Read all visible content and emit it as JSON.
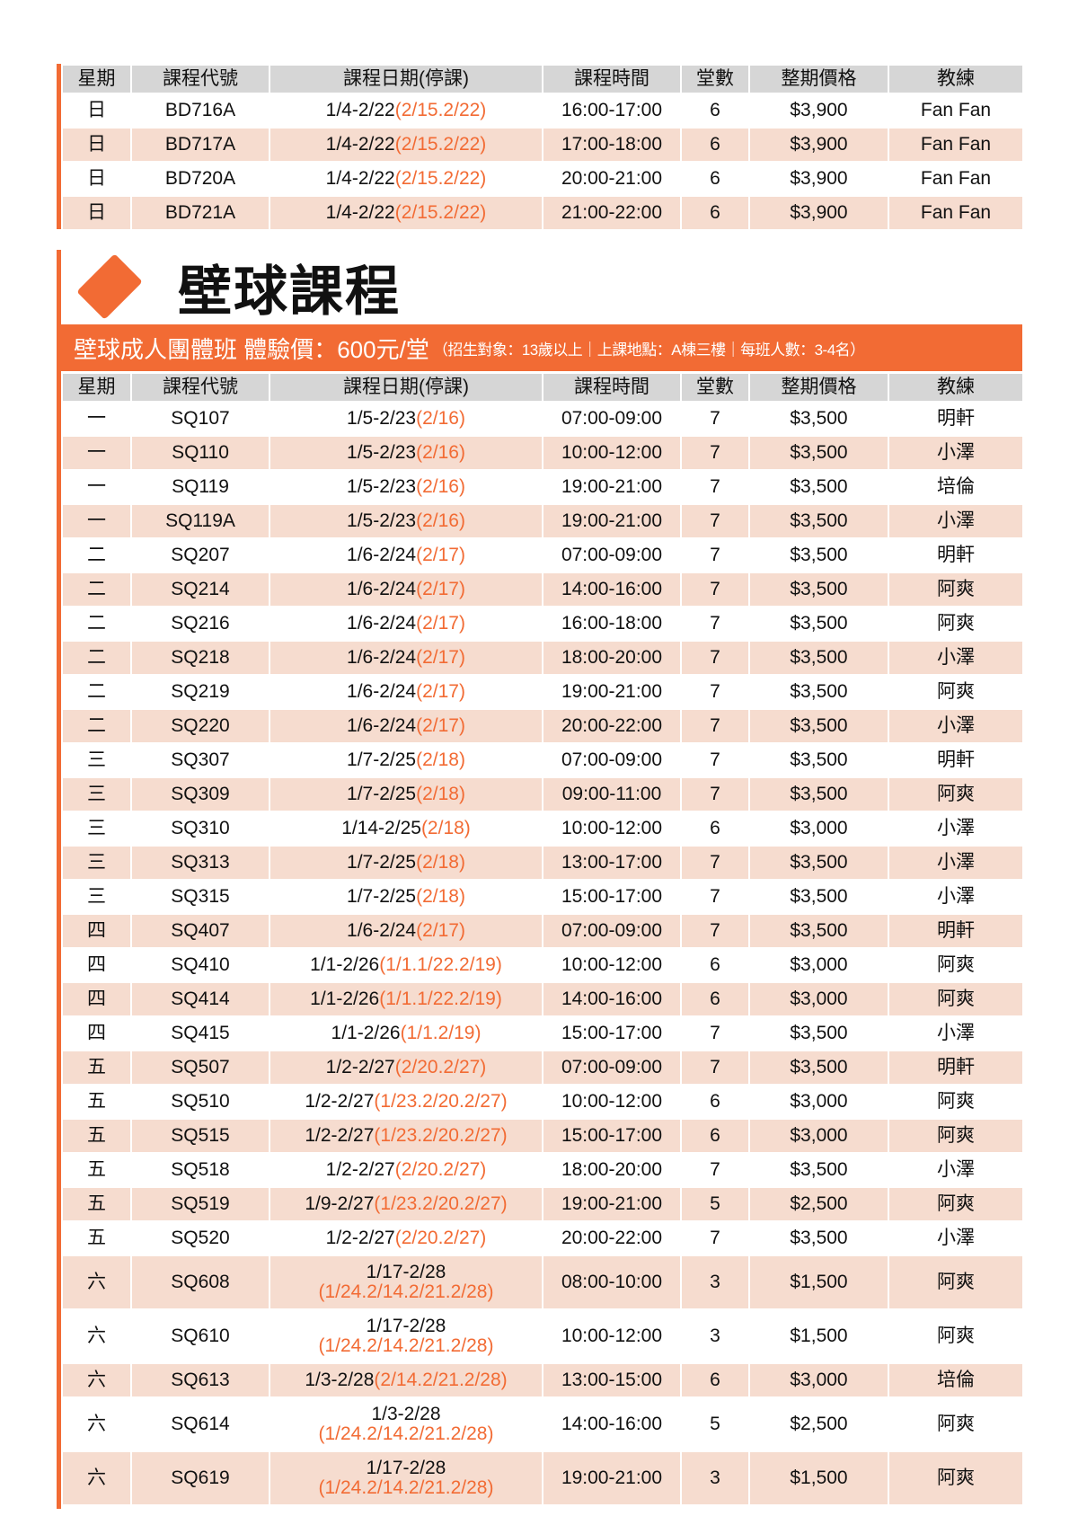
{
  "colors": {
    "accent": "#f26b34",
    "header_bg": "#d6d6d6",
    "alt_row": "#f6dccf"
  },
  "columns": [
    "星期",
    "課程代號",
    "課程日期(停課)",
    "課程時間",
    "堂數",
    "整期價格",
    "教練"
  ],
  "table1": [
    {
      "day": "日",
      "code": "BD716A",
      "date": "1/4-2/22",
      "stop": "(2/15.2/22)",
      "time": "16:00-17:00",
      "count": "6",
      "price": "$3,900",
      "coach": "Fan Fan"
    },
    {
      "day": "日",
      "code": "BD717A",
      "date": "1/4-2/22",
      "stop": "(2/15.2/22)",
      "time": "17:00-18:00",
      "count": "6",
      "price": "$3,900",
      "coach": "Fan Fan"
    },
    {
      "day": "日",
      "code": "BD720A",
      "date": "1/4-2/22",
      "stop": "(2/15.2/22)",
      "time": "20:00-21:00",
      "count": "6",
      "price": "$3,900",
      "coach": "Fan Fan"
    },
    {
      "day": "日",
      "code": "BD721A",
      "date": "1/4-2/22",
      "stop": "(2/15.2/22)",
      "time": "21:00-22:00",
      "count": "6",
      "price": "$3,900",
      "coach": "Fan Fan"
    }
  ],
  "section": {
    "title": "壁球課程",
    "banner_main": "壁球成人團體班 體驗價：600元/堂",
    "banner_note": "（招生對象：13歲以上｜上課地點：A棟三樓｜每班人數：3-4名）"
  },
  "table2": [
    {
      "day": "一",
      "code": "SQ107",
      "date": "1/5-2/23",
      "stop": "(2/16)",
      "time": "07:00-09:00",
      "count": "7",
      "price": "$3,500",
      "coach": "明軒"
    },
    {
      "day": "一",
      "code": "SQ110",
      "date": "1/5-2/23",
      "stop": "(2/16)",
      "time": "10:00-12:00",
      "count": "7",
      "price": "$3,500",
      "coach": "小澤"
    },
    {
      "day": "一",
      "code": "SQ119",
      "date": "1/5-2/23",
      "stop": "(2/16)",
      "time": "19:00-21:00",
      "count": "7",
      "price": "$3,500",
      "coach": "培倫"
    },
    {
      "day": "一",
      "code": "SQ119A",
      "date": "1/5-2/23",
      "stop": "(2/16)",
      "time": "19:00-21:00",
      "count": "7",
      "price": "$3,500",
      "coach": "小澤"
    },
    {
      "day": "二",
      "code": "SQ207",
      "date": "1/6-2/24",
      "stop": "(2/17)",
      "time": "07:00-09:00",
      "count": "7",
      "price": "$3,500",
      "coach": "明軒"
    },
    {
      "day": "二",
      "code": "SQ214",
      "date": "1/6-2/24",
      "stop": "(2/17)",
      "time": "14:00-16:00",
      "count": "7",
      "price": "$3,500",
      "coach": "阿爽"
    },
    {
      "day": "二",
      "code": "SQ216",
      "date": "1/6-2/24",
      "stop": "(2/17)",
      "time": "16:00-18:00",
      "count": "7",
      "price": "$3,500",
      "coach": "阿爽"
    },
    {
      "day": "二",
      "code": "SQ218",
      "date": "1/6-2/24",
      "stop": "(2/17)",
      "time": "18:00-20:00",
      "count": "7",
      "price": "$3,500",
      "coach": "小澤"
    },
    {
      "day": "二",
      "code": "SQ219",
      "date": "1/6-2/24",
      "stop": "(2/17)",
      "time": "19:00-21:00",
      "count": "7",
      "price": "$3,500",
      "coach": "阿爽"
    },
    {
      "day": "二",
      "code": "SQ220",
      "date": "1/6-2/24",
      "stop": "(2/17)",
      "time": "20:00-22:00",
      "count": "7",
      "price": "$3,500",
      "coach": "小澤"
    },
    {
      "day": "三",
      "code": "SQ307",
      "date": "1/7-2/25",
      "stop": "(2/18)",
      "time": "07:00-09:00",
      "count": "7",
      "price": "$3,500",
      "coach": "明軒"
    },
    {
      "day": "三",
      "code": "SQ309",
      "date": "1/7-2/25",
      "stop": "(2/18)",
      "time": "09:00-11:00",
      "count": "7",
      "price": "$3,500",
      "coach": "阿爽"
    },
    {
      "day": "三",
      "code": "SQ310",
      "date": "1/14-2/25",
      "stop": "(2/18)",
      "time": "10:00-12:00",
      "count": "6",
      "price": "$3,000",
      "coach": "小澤"
    },
    {
      "day": "三",
      "code": "SQ313",
      "date": "1/7-2/25",
      "stop": "(2/18)",
      "time": "13:00-17:00",
      "count": "7",
      "price": "$3,500",
      "coach": "小澤"
    },
    {
      "day": "三",
      "code": "SQ315",
      "date": "1/7-2/25",
      "stop": "(2/18)",
      "time": "15:00-17:00",
      "count": "7",
      "price": "$3,500",
      "coach": "小澤"
    },
    {
      "day": "四",
      "code": "SQ407",
      "date": "1/6-2/24",
      "stop": "(2/17)",
      "time": "07:00-09:00",
      "count": "7",
      "price": "$3,500",
      "coach": "明軒"
    },
    {
      "day": "四",
      "code": "SQ410",
      "date": "1/1-2/26",
      "stop": "(1/1.1/22.2/19)",
      "time": "10:00-12:00",
      "count": "6",
      "price": "$3,000",
      "coach": "阿爽"
    },
    {
      "day": "四",
      "code": "SQ414",
      "date": "1/1-2/26",
      "stop": "(1/1.1/22.2/19)",
      "time": "14:00-16:00",
      "count": "6",
      "price": "$3,000",
      "coach": "阿爽"
    },
    {
      "day": "四",
      "code": "SQ415",
      "date": "1/1-2/26",
      "stop": "(1/1.2/19)",
      "time": "15:00-17:00",
      "count": "7",
      "price": "$3,500",
      "coach": "小澤"
    },
    {
      "day": "五",
      "code": "SQ507",
      "date": "1/2-2/27",
      "stop": "(2/20.2/27)",
      "time": "07:00-09:00",
      "count": "7",
      "price": "$3,500",
      "coach": "明軒"
    },
    {
      "day": "五",
      "code": "SQ510",
      "date": "1/2-2/27",
      "stop": "(1/23.2/20.2/27)",
      "time": "10:00-12:00",
      "count": "6",
      "price": "$3,000",
      "coach": "阿爽"
    },
    {
      "day": "五",
      "code": "SQ515",
      "date": "1/2-2/27",
      "stop": "(1/23.2/20.2/27)",
      "time": "15:00-17:00",
      "count": "6",
      "price": "$3,000",
      "coach": "阿爽"
    },
    {
      "day": "五",
      "code": "SQ518",
      "date": "1/2-2/27",
      "stop": "(2/20.2/27)",
      "time": "18:00-20:00",
      "count": "7",
      "price": "$3,500",
      "coach": "小澤"
    },
    {
      "day": "五",
      "code": "SQ519",
      "date": "1/9-2/27",
      "stop": "(1/23.2/20.2/27)",
      "time": "19:00-21:00",
      "count": "5",
      "price": "$2,500",
      "coach": "阿爽"
    },
    {
      "day": "五",
      "code": "SQ520",
      "date": "1/2-2/27",
      "stop": "(2/20.2/27)",
      "time": "20:00-22:00",
      "count": "7",
      "price": "$3,500",
      "coach": "小澤"
    },
    {
      "day": "六",
      "code": "SQ608",
      "date": "1/17-2/28",
      "stop": "(1/24.2/14.2/21.2/28)",
      "wrap": true,
      "time": "08:00-10:00",
      "count": "3",
      "price": "$1,500",
      "coach": "阿爽"
    },
    {
      "day": "六",
      "code": "SQ610",
      "date": "1/17-2/28",
      "stop": "(1/24.2/14.2/21.2/28)",
      "wrap": true,
      "time": "10:00-12:00",
      "count": "3",
      "price": "$1,500",
      "coach": "阿爽"
    },
    {
      "day": "六",
      "code": "SQ613",
      "date": "1/3-2/28",
      "stop": "(2/14.2/21.2/28)",
      "time": "13:00-15:00",
      "count": "6",
      "price": "$3,000",
      "coach": "培倫"
    },
    {
      "day": "六",
      "code": "SQ614",
      "date": "1/3-2/28",
      "stop": "(1/24.2/14.2/21.2/28)",
      "wrap": true,
      "time": "14:00-16:00",
      "count": "5",
      "price": "$2,500",
      "coach": "阿爽"
    },
    {
      "day": "六",
      "code": "SQ619",
      "date": "1/17-2/28",
      "stop": "(1/24.2/14.2/21.2/28)",
      "wrap": true,
      "time": "19:00-21:00",
      "count": "3",
      "price": "$1,500",
      "coach": "阿爽"
    }
  ]
}
